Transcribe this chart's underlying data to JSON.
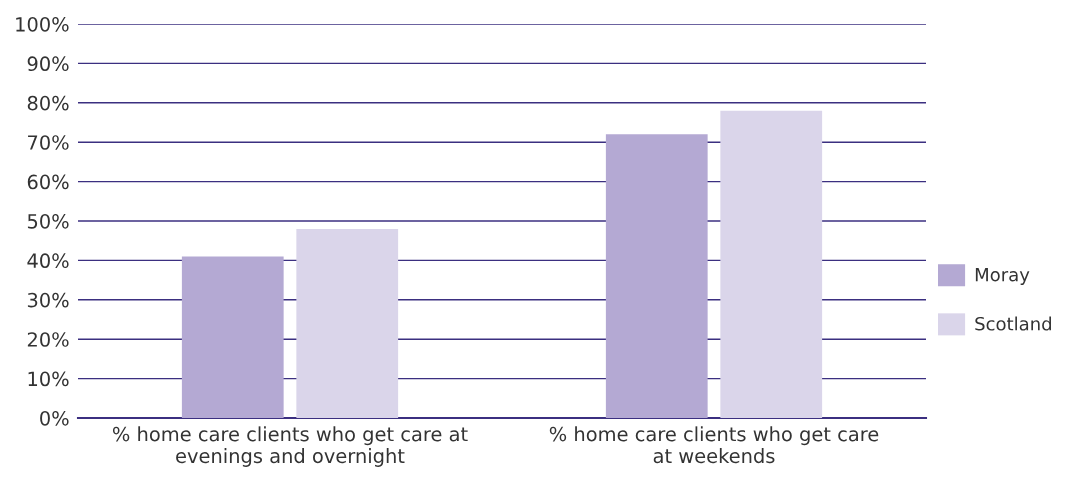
{
  "chart_data": {
    "type": "bar",
    "categories": [
      "% home care clients who get care at\nevenings and overnight",
      "% home care clients who get care\nat weekends"
    ],
    "series": [
      {
        "name": "Moray",
        "color": "#b4a9d3",
        "values": [
          41,
          72
        ]
      },
      {
        "name": "Scotland",
        "color": "#dad5ea",
        "values": [
          48,
          78
        ]
      }
    ],
    "ylim": [
      0,
      100
    ],
    "yticks": [
      {
        "value": 0,
        "label": "0%"
      },
      {
        "value": 10,
        "label": "10%"
      },
      {
        "value": 20,
        "label": "20%"
      },
      {
        "value": 30,
        "label": "30%"
      },
      {
        "value": 40,
        "label": "40%"
      },
      {
        "value": 50,
        "label": "50%"
      },
      {
        "value": 60,
        "label": "60%"
      },
      {
        "value": 70,
        "label": "70%"
      },
      {
        "value": 80,
        "label": "80%"
      },
      {
        "value": 90,
        "label": "90%"
      },
      {
        "value": 100,
        "label": "100%"
      }
    ],
    "grid": "y",
    "legend": "right"
  }
}
